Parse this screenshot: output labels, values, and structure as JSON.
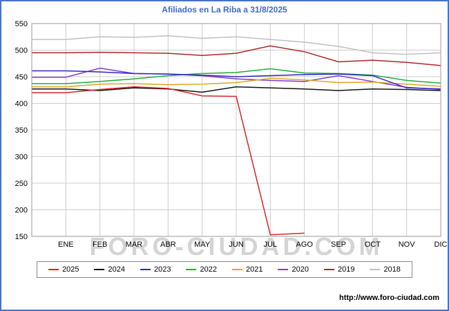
{
  "chart_data": {
    "type": "line",
    "title": "Afiliados en La Riba a 31/8/2025",
    "categories": [
      "ENE",
      "FEB",
      "MAR",
      "ABR",
      "MAY",
      "JUN",
      "JUL",
      "AGO",
      "SEP",
      "OCT",
      "NOV",
      "DIC"
    ],
    "ylim": [
      150,
      550
    ],
    "ytick_step": 50,
    "grid": true,
    "legend_position": "bottom",
    "series": [
      {
        "name": "2025",
        "color": "#dd2222",
        "values": [
          420,
          426,
          431,
          428,
          414,
          413,
          153,
          156,
          null,
          null,
          null,
          null
        ]
      },
      {
        "name": "2024",
        "color": "#111111",
        "values": [
          427,
          424,
          429,
          427,
          421,
          431,
          429,
          427,
          424,
          427,
          426,
          424
        ]
      },
      {
        "name": "2023",
        "color": "#2828c8",
        "values": [
          461,
          459,
          456,
          455,
          453,
          450,
          452,
          454,
          455,
          452,
          429,
          427
        ]
      },
      {
        "name": "2022",
        "color": "#22aa33",
        "values": [
          437,
          441,
          446,
          452,
          456,
          458,
          465,
          457,
          456,
          453,
          443,
          438
        ]
      },
      {
        "name": "2021",
        "color": "#dda522",
        "values": [
          431,
          436,
          437,
          435,
          436,
          439,
          447,
          444,
          439,
          440,
          436,
          432
        ]
      },
      {
        "name": "2020",
        "color": "#8833cc",
        "values": [
          449,
          466,
          456,
          455,
          452,
          446,
          443,
          441,
          452,
          441,
          430,
          426
        ]
      },
      {
        "name": "2019",
        "color": "#b22222",
        "values": [
          495,
          496,
          495,
          494,
          490,
          494,
          508,
          497,
          478,
          481,
          477,
          471
        ]
      },
      {
        "name": "2018",
        "color": "#c0c0c0",
        "values": [
          520,
          525,
          524,
          527,
          522,
          525,
          520,
          515,
          507,
          495,
          492,
          495
        ]
      }
    ]
  },
  "watermark": "FORO-CIUDAD.COM",
  "footer": {
    "url": "http://www.foro-ciudad.com"
  },
  "colors": {
    "title": "#3a6bd6",
    "page_border": "#4472c4",
    "grid": "#cccccc",
    "axis": "#999999",
    "watermark": "#d4d4d4",
    "text": "#000000"
  }
}
